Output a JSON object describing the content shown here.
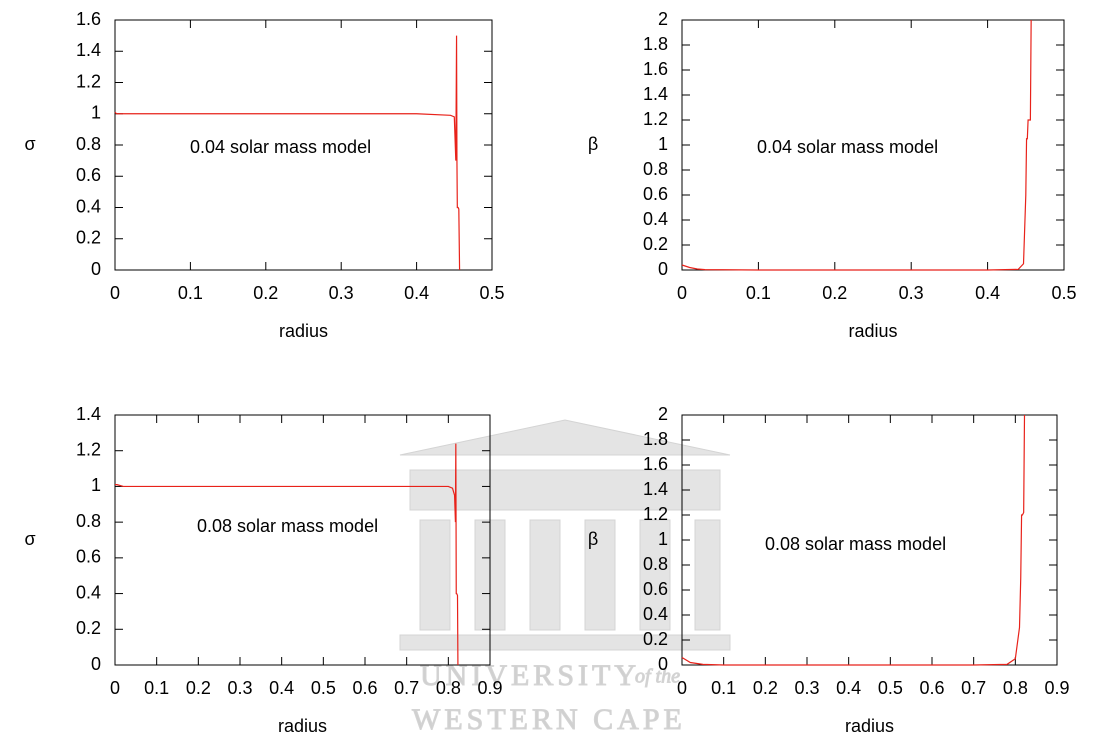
{
  "chart_data": [
    {
      "type": "line",
      "annotation": "0.04 solar mass model",
      "x_label": "radius",
      "y_label": "σ",
      "xlim": [
        0,
        0.5
      ],
      "xticks": [
        0,
        0.1,
        0.2,
        0.3,
        0.4,
        0.5
      ],
      "ylim": [
        0,
        1.6
      ],
      "yticks": [
        0,
        0.2,
        0.4,
        0.6,
        0.8,
        1,
        1.2,
        1.4,
        1.6
      ],
      "series": [
        {
          "color": "#e8221a",
          "x": [
            0,
            0.002,
            0.01,
            0.1,
            0.2,
            0.3,
            0.4,
            0.445,
            0.45,
            0.452,
            0.453,
            0.4535,
            0.454,
            0.455,
            0.456,
            0.457
          ],
          "values": [
            1.01,
            1.0,
            1.0,
            1.0,
            1.0,
            1.0,
            1.0,
            0.99,
            0.98,
            0.7,
            1.5,
            0.7,
            0.4,
            0.4,
            0.39,
            0
          ]
        }
      ]
    },
    {
      "type": "line",
      "annotation": "0.04 solar mass model",
      "x_label": "radius",
      "y_label": "β",
      "xlim": [
        0,
        0.5
      ],
      "xticks": [
        0,
        0.1,
        0.2,
        0.3,
        0.4,
        0.5
      ],
      "ylim": [
        0,
        2
      ],
      "yticks": [
        0,
        0.2,
        0.4,
        0.6,
        0.8,
        1,
        1.2,
        1.4,
        1.6,
        1.8,
        2
      ],
      "series": [
        {
          "color": "#e8221a",
          "x": [
            0,
            0.01,
            0.02,
            0.03,
            0.1,
            0.2,
            0.3,
            0.4,
            0.44,
            0.447,
            0.45,
            0.451,
            0.452,
            0.453,
            0.456,
            0.457
          ],
          "values": [
            0.04,
            0.02,
            0.008,
            0.003,
            0,
            0,
            0,
            0,
            0.005,
            0.05,
            0.6,
            1.05,
            1.05,
            1.2,
            1.2,
            2
          ]
        }
      ]
    },
    {
      "type": "line",
      "annotation": "0.08 solar mass model",
      "x_label": "radius",
      "y_label": "σ",
      "xlim": [
        0,
        0.9
      ],
      "xticks": [
        0,
        0.1,
        0.2,
        0.3,
        0.4,
        0.5,
        0.6,
        0.7,
        0.8,
        0.9
      ],
      "ylim": [
        0,
        1.4
      ],
      "yticks": [
        0,
        0.2,
        0.4,
        0.6,
        0.8,
        1,
        1.2,
        1.4
      ],
      "series": [
        {
          "color": "#e8221a",
          "x": [
            0,
            0.005,
            0.02,
            0.1,
            0.3,
            0.5,
            0.7,
            0.8,
            0.81,
            0.815,
            0.817,
            0.818,
            0.819,
            0.82,
            0.822,
            0.823
          ],
          "values": [
            1.01,
            1.01,
            1.0,
            1,
            1,
            1,
            1,
            1,
            0.99,
            0.95,
            0.8,
            1.24,
            0.4,
            0.4,
            0.39,
            0
          ]
        }
      ]
    },
    {
      "type": "line",
      "annotation": "0.08 solar mass model",
      "x_label": "radius",
      "y_label": "β",
      "xlim": [
        0,
        0.9
      ],
      "xticks": [
        0,
        0.1,
        0.2,
        0.3,
        0.4,
        0.5,
        0.6,
        0.7,
        0.8,
        0.9
      ],
      "ylim": [
        0,
        2
      ],
      "yticks": [
        0,
        0.2,
        0.4,
        0.6,
        0.8,
        1,
        1.2,
        1.4,
        1.6,
        1.8,
        2
      ],
      "series": [
        {
          "color": "#e8221a",
          "x": [
            0,
            0.02,
            0.05,
            0.1,
            0.3,
            0.5,
            0.7,
            0.78,
            0.8,
            0.81,
            0.813,
            0.815,
            0.817,
            0.82,
            0.822
          ],
          "values": [
            0.06,
            0.02,
            0.005,
            0,
            0,
            0,
            0,
            0.005,
            0.05,
            0.3,
            0.7,
            1.2,
            1.2,
            1.22,
            2
          ]
        }
      ]
    }
  ],
  "watermark": {
    "line1": "UNIVERSITY",
    "line2": "of the",
    "line3": "WESTERN CAPE"
  }
}
